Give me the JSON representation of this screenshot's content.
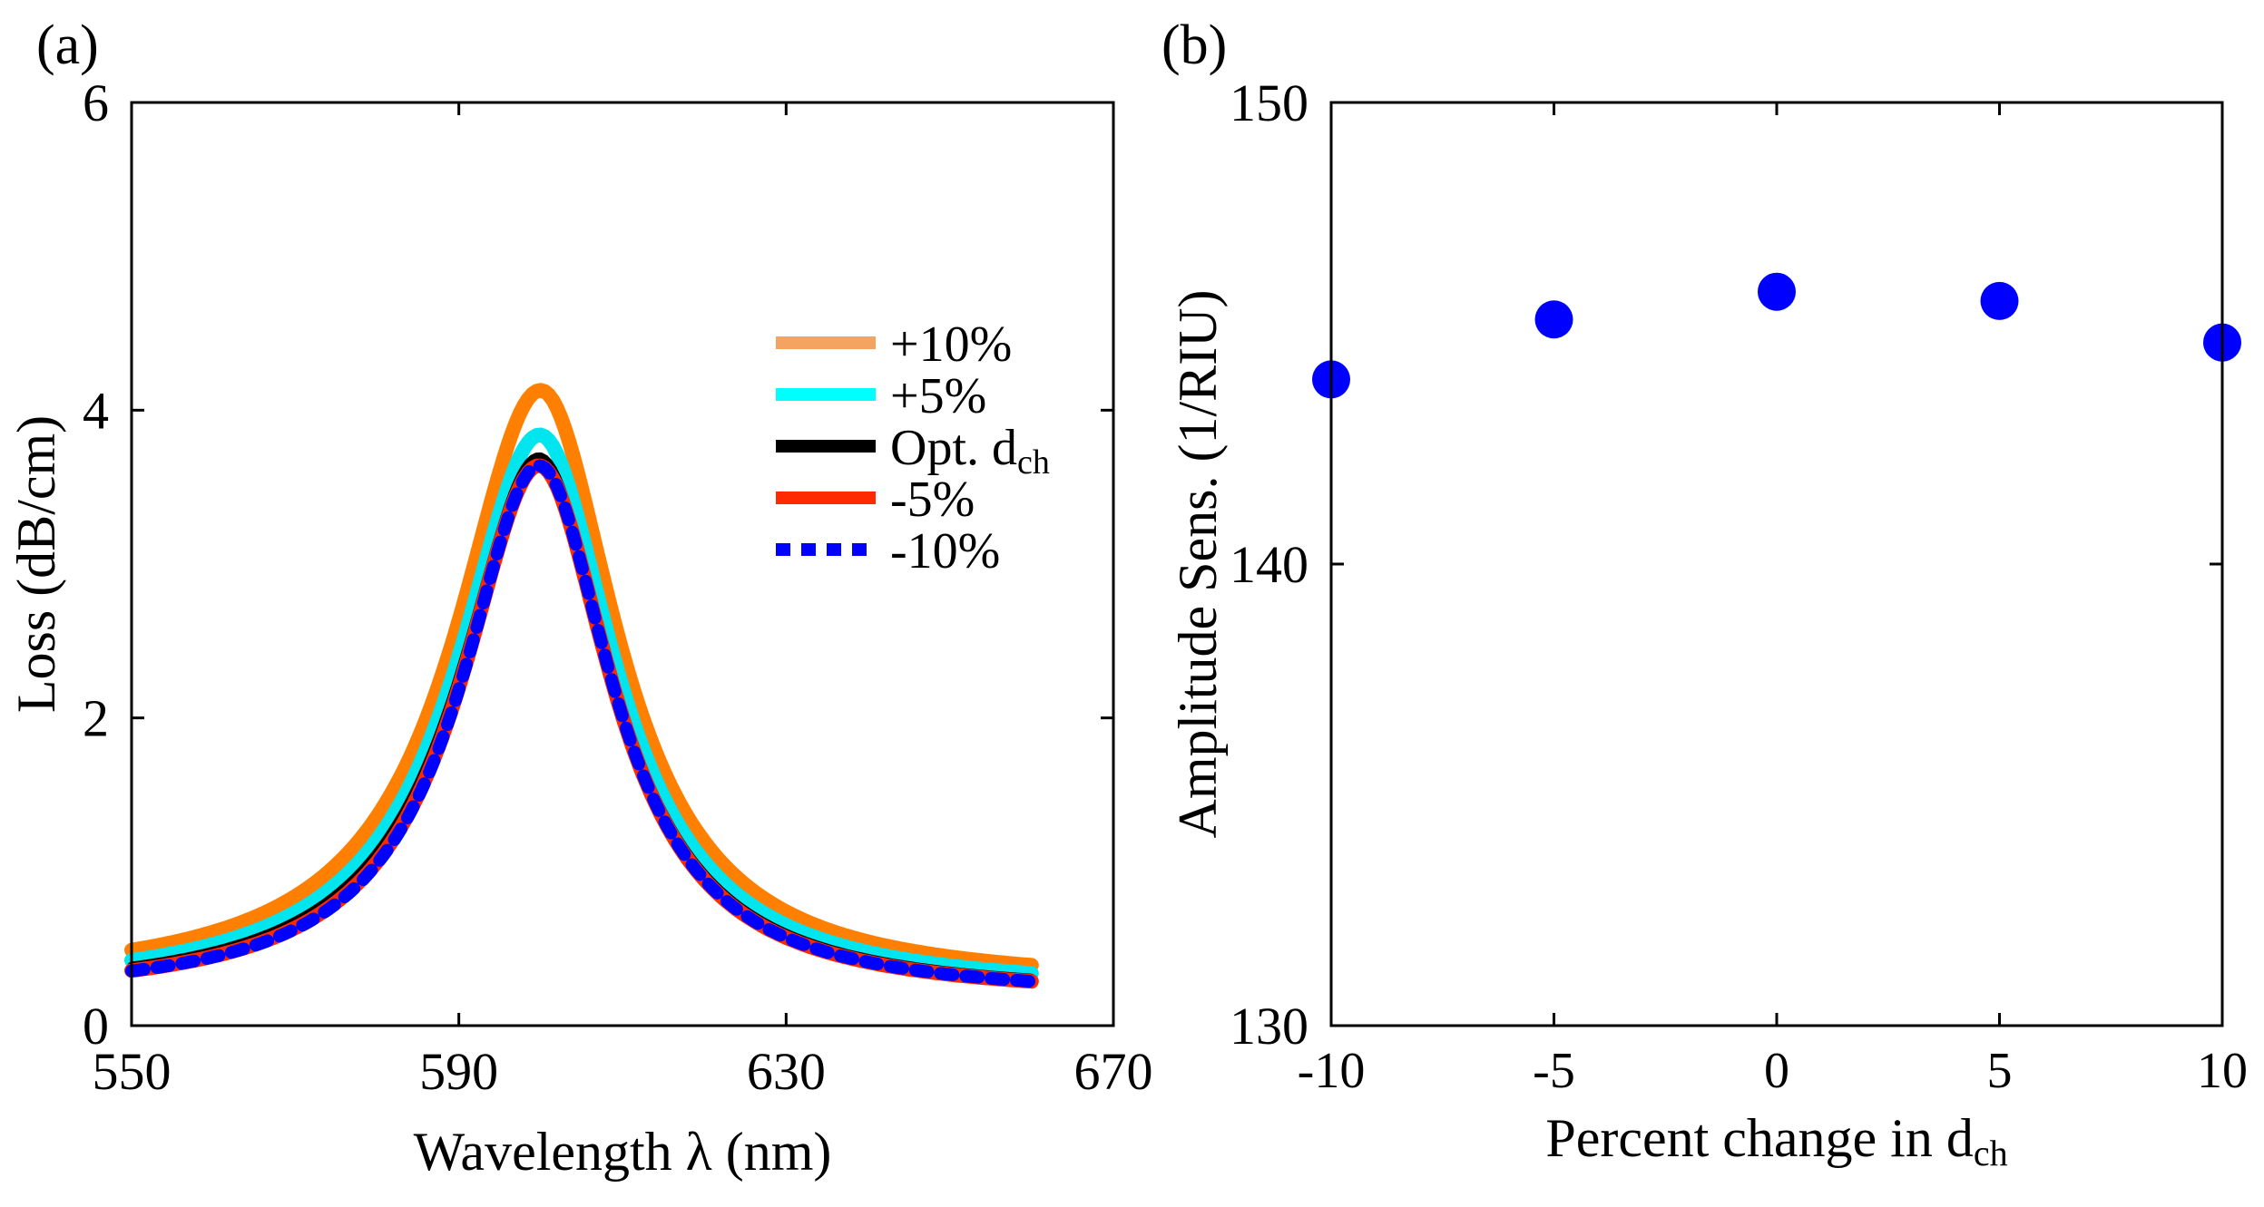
{
  "chart_data": [
    {
      "panel_label": "(a)",
      "type": "line",
      "xlabel": "Wavelength λ (nm)",
      "ylabel": "Loss (dB/cm)",
      "xlim": [
        550,
        670
      ],
      "ylim": [
        0,
        6
      ],
      "xticks": [
        550,
        590,
        630,
        670
      ],
      "yticks": [
        0,
        2,
        4,
        6
      ],
      "legend_position": "right",
      "series": [
        {
          "name": "+10%",
          "name_main": "+10%",
          "name_sub": "",
          "color": "#ff8000",
          "legend_color": "#f4a460",
          "dashed": false,
          "peak_x": 600.0,
          "peak_y": 4.13,
          "hwhm_left": 12.6,
          "hwhm_right": 11.3,
          "offset": 0.26,
          "base": 0.59,
          "x_start": 550,
          "x_end": 660
        },
        {
          "name": "+5%",
          "name_main": "+5%",
          "name_sub": "",
          "color": "#00e5ee",
          "legend_color": "#00ffff",
          "dashed": false,
          "peak_x": 599.9,
          "peak_y": 3.84,
          "hwhm_left": 12.2,
          "hwhm_right": 11.1,
          "offset": 0.22,
          "base": 0.58,
          "x_start": 550,
          "x_end": 660
        },
        {
          "name": "Opt. dch",
          "name_main": "Opt. d",
          "name_sub": "ch",
          "color": "#000000",
          "legend_color": "#000000",
          "dashed": false,
          "peak_x": 599.8,
          "peak_y": 3.7,
          "hwhm_left": 11.9,
          "hwhm_right": 10.9,
          "offset": 0.2,
          "base": 0.57,
          "x_start": 550,
          "x_end": 660
        },
        {
          "name": "-5%",
          "name_main": "-5%",
          "name_sub": "",
          "color": "#ff2a00",
          "legend_color": "#ff2a00",
          "dashed": false,
          "peak_x": 599.8,
          "peak_y": 3.64,
          "hwhm_left": 11.6,
          "hwhm_right": 10.8,
          "offset": 0.18,
          "base": 0.54,
          "x_start": 550,
          "x_end": 660
        },
        {
          "name": "-10%",
          "name_main": "-10%",
          "name_sub": "",
          "color": "#0000ff",
          "legend_color": "#0000ff",
          "dashed": true,
          "peak_x": 599.8,
          "peak_y": 3.64,
          "hwhm_left": 11.5,
          "hwhm_right": 10.8,
          "offset": 0.18,
          "base": 0.55,
          "x_start": 550,
          "x_end": 660
        }
      ]
    },
    {
      "panel_label": "(b)",
      "type": "scatter",
      "xlabel": "Percent change in dch",
      "xlabel_main": "Percent change in d",
      "xlabel_sub": "ch",
      "ylabel": "Amplitude Sens. (1/RIU)",
      "xlim": [
        -10,
        10
      ],
      "ylim": [
        130,
        150
      ],
      "xticks": [
        -10,
        -5,
        0,
        5,
        10
      ],
      "yticks": [
        130,
        140,
        150
      ],
      "marker_color": "#0000ff",
      "x": [
        -10,
        -5,
        0,
        5,
        10
      ],
      "y": [
        144.0,
        145.3,
        145.9,
        145.7,
        144.8
      ]
    }
  ]
}
